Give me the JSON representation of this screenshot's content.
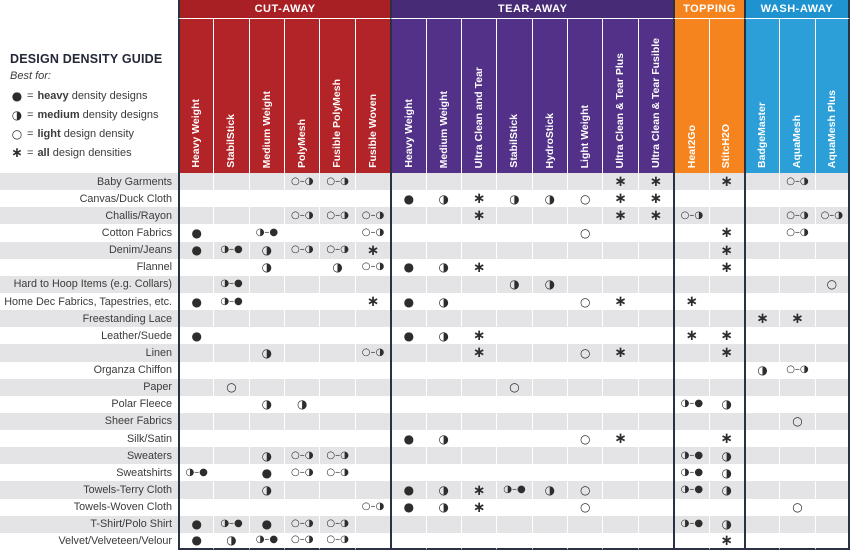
{
  "legend_panel": {
    "title": "DESIGN DENSITY GUIDE",
    "subtitle": "Best for:",
    "items": [
      {
        "symbol": "heavy",
        "eq": "=",
        "bold": "heavy",
        "rest": "density designs"
      },
      {
        "symbol": "medium",
        "eq": "=",
        "bold": "medium",
        "rest": "density designs"
      },
      {
        "symbol": "light",
        "eq": "=",
        "bold": "light",
        "rest": "design density"
      },
      {
        "symbol": "all",
        "eq": "=",
        "bold": "all",
        "rest": "design densities"
      }
    ]
  },
  "symbols": {
    "heavy": "●",
    "medium": "◑",
    "light": "○",
    "all": "∗",
    "light_medium": "○–◑",
    "medium_heavy": "◑–●"
  },
  "colors": {
    "cutaway_bar": "#a81f24",
    "cutaway_col": "#b22427",
    "tearaway_bar": "#472b76",
    "tearaway_col": "#533189",
    "topping_bar": "#f5841f",
    "topping_col": "#f5841f",
    "washaway_bar": "#1f93d0",
    "washaway_col": "#2d9fd8",
    "divider_navy": "#2a3142",
    "row_stripe": "#e4e4e6",
    "symbol_ink": "#2d2d2d"
  },
  "chart_data": {
    "type": "table",
    "column_groups": [
      {
        "label": "CUT-AWAY",
        "color": "#a81f24",
        "col_color": "#b22427",
        "columns": [
          "Heavy Weight",
          "StabilStick",
          "Medium Weight",
          "PolyMesh",
          "Fusible PolyMesh",
          "Fusible Woven"
        ]
      },
      {
        "label": "TEAR-AWAY",
        "color": "#472b76",
        "col_color": "#533189",
        "columns": [
          "Heavy Weight",
          "Medium Weight",
          "Ultra Clean and Tear",
          "StabilStick",
          "HydroStick",
          "Light Weight",
          "Ultra Clean & Tear Plus",
          "Ultra Clean & Tear Fusible"
        ]
      },
      {
        "label": "TOPPING",
        "color": "#f5841f",
        "col_color": "#f5841f",
        "columns": [
          "Heat2Go",
          "StitcH2O"
        ]
      },
      {
        "label": "WASH-AWAY",
        "color": "#1f93d0",
        "col_color": "#2d9fd8",
        "columns": [
          "BadgeMaster",
          "AquaMesh",
          "AquaMesh Plus"
        ]
      }
    ],
    "rows": [
      {
        "label": "Baby Garments",
        "cells": {
          "4": "light_medium",
          "5": "light_medium",
          "13": "all",
          "14": "all",
          "16": "all",
          "18": "light_medium"
        }
      },
      {
        "label": "Canvas/Duck Cloth",
        "cells": {
          "7": "heavy",
          "8": "medium",
          "9": "all",
          "10": "medium",
          "11": "medium",
          "12": "light",
          "13": "all",
          "14": "all"
        }
      },
      {
        "label": "Challis/Rayon",
        "cells": {
          "4": "light_medium",
          "5": "light_medium",
          "6": "light_medium",
          "9": "all",
          "13": "all",
          "14": "all",
          "15": "light_medium",
          "18": "light_medium",
          "19": "light_medium"
        }
      },
      {
        "label": "Cotton Fabrics",
        "cells": {
          "1": "heavy",
          "3": "medium_heavy",
          "6": "light_medium",
          "12": "light",
          "16": "all",
          "18": "light_medium"
        }
      },
      {
        "label": "Denim/Jeans",
        "cells": {
          "1": "heavy",
          "2": "medium_heavy",
          "3": "medium",
          "4": "light_medium",
          "5": "light_medium",
          "6": "all",
          "16": "all"
        }
      },
      {
        "label": "Flannel",
        "cells": {
          "3": "medium",
          "5": "medium",
          "6": "light_medium",
          "7": "heavy",
          "8": "medium",
          "9": "all",
          "16": "all"
        }
      },
      {
        "label": "Hard to Hoop Items (e.g. Collars)",
        "cells": {
          "2": "medium_heavy",
          "10": "medium",
          "11": "medium",
          "19": "light"
        }
      },
      {
        "label": "Home Dec Fabrics, Tapestries, etc.",
        "cells": {
          "1": "heavy",
          "2": "medium_heavy",
          "6": "all",
          "7": "heavy",
          "8": "medium",
          "12": "light",
          "13": "all",
          "15": "all"
        }
      },
      {
        "label": "Freestanding Lace",
        "cells": {
          "17": "all",
          "18": "all"
        }
      },
      {
        "label": "Leather/Suede",
        "cells": {
          "1": "heavy",
          "7": "heavy",
          "8": "medium",
          "9": "all",
          "15": "all",
          "16": "all"
        }
      },
      {
        "label": "Linen",
        "cells": {
          "3": "medium",
          "6": "light_medium",
          "9": "all",
          "12": "light",
          "13": "all",
          "16": "all"
        }
      },
      {
        "label": "Organza Chiffon",
        "cells": {
          "17": "medium",
          "18": "light_medium"
        }
      },
      {
        "label": "Paper",
        "cells": {
          "2": "light",
          "10": "light"
        }
      },
      {
        "label": "Polar Fleece",
        "cells": {
          "3": "medium",
          "4": "medium",
          "15": "medium_heavy",
          "16": "medium"
        }
      },
      {
        "label": "Sheer Fabrics",
        "cells": {
          "18": "light"
        }
      },
      {
        "label": "Silk/Satin",
        "cells": {
          "7": "heavy",
          "8": "medium",
          "12": "light",
          "13": "all",
          "16": "all"
        }
      },
      {
        "label": "Sweaters",
        "cells": {
          "3": "medium",
          "4": "light_medium",
          "5": "light_medium",
          "15": "medium_heavy",
          "16": "medium"
        }
      },
      {
        "label": "Sweatshirts",
        "cells": {
          "1": "medium_heavy",
          "3": "heavy",
          "4": "light_medium",
          "5": "light_medium",
          "15": "medium_heavy",
          "16": "medium"
        }
      },
      {
        "label": "Towels-Terry Cloth",
        "cells": {
          "3": "medium",
          "7": "heavy",
          "8": "medium",
          "9": "all",
          "10": "medium_heavy",
          "11": "medium",
          "12": "light",
          "15": "medium_heavy",
          "16": "medium"
        }
      },
      {
        "label": "Towels-Woven Cloth",
        "cells": {
          "6": "light_medium",
          "7": "heavy",
          "8": "medium",
          "9": "all",
          "12": "light",
          "18": "light"
        }
      },
      {
        "label": "T-Shirt/Polo Shirt",
        "cells": {
          "1": "heavy",
          "2": "medium_heavy",
          "3": "heavy",
          "4": "light_medium",
          "5": "light_medium",
          "15": "medium_heavy",
          "16": "medium"
        }
      },
      {
        "label": "Velvet/Velveteen/Velour",
        "cells": {
          "1": "heavy",
          "2": "medium",
          "3": "medium_heavy",
          "4": "light_medium",
          "5": "light_medium",
          "16": "all"
        }
      }
    ]
  }
}
